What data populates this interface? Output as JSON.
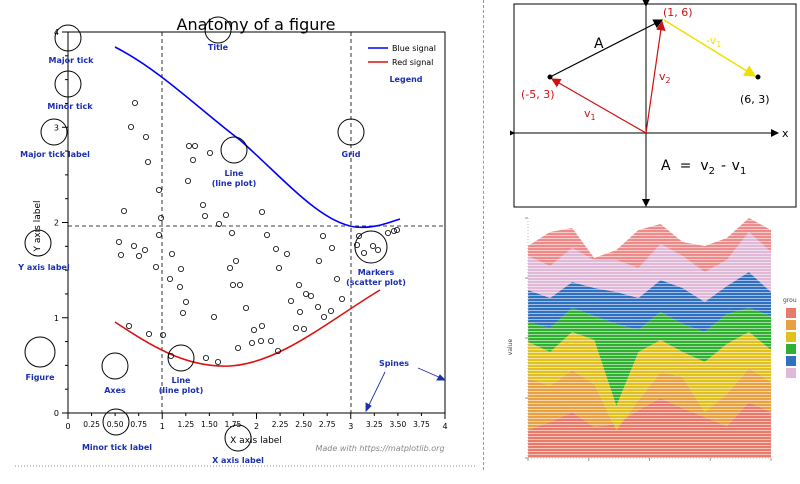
{
  "anatomy": {
    "title": "Anatomy of a figure",
    "xlabel": "X axis label",
    "ylabel": "Y axis label",
    "x_major_ticks": [
      "0",
      "1",
      "2",
      "3",
      "4"
    ],
    "x_minor_ticks": [
      "0.25",
      "0.50",
      "0.75",
      "1.25",
      "1.50",
      "1.75",
      "2.25",
      "2.50",
      "2.75",
      "3.25",
      "3.50",
      "3.75"
    ],
    "y_major_ticks": [
      "0",
      "1",
      "2",
      "3",
      "4"
    ],
    "legend": [
      "Blue signal",
      "Red signal"
    ],
    "watermark": "Made with https://matplotlib.org",
    "annotations": {
      "major_tick": "Major tick",
      "minor_tick": "Minor tick",
      "major_tick_label": "Major tick label",
      "y_axis_label": "Y axis label",
      "figure": "Figure",
      "axes": "Axes",
      "line_lower_1": "Line",
      "line_lower_2": "(line plot)",
      "minor_tick_label": "Minor tick label",
      "x_axis_label": "X axis label",
      "title": "Title",
      "legend": "Legend",
      "grid": "Grid",
      "line_upper_1": "Line",
      "line_upper_2": "(line plot)",
      "markers_1": "Markers",
      "markers_2": "(scatter plot)",
      "spines": "Spines"
    },
    "colors": {
      "blue": "#0000ff",
      "red": "#dd1111",
      "annotation": "#1a2fb0"
    }
  },
  "vectors": {
    "points": [
      "(1, 6)",
      "(-5, 3)",
      "(6, 3)"
    ],
    "labels": {
      "A": "A",
      "v1": "v",
      "v1_sub": "1",
      "v2": "v",
      "v2_sub": "2",
      "minus_v1": "-v",
      "minus_v1_sub": "1"
    },
    "equation": {
      "A": "A",
      "eq": "=",
      "v2": "v",
      "v2_sub": "2",
      "minus": "-",
      "v1": "v",
      "v1_sub": "1"
    },
    "axis_x": "x",
    "colors": {
      "black": "#000000",
      "red": "#d01010",
      "yellow": "#f0e000"
    }
  },
  "stacked": {
    "legend_title": "grou",
    "ylabel": "value",
    "colors": [
      "#e87a6a",
      "#e8a040",
      "#e2c020",
      "#30b030",
      "#3070c0",
      "#e0b8d8",
      "#ee8a8a"
    ]
  }
}
